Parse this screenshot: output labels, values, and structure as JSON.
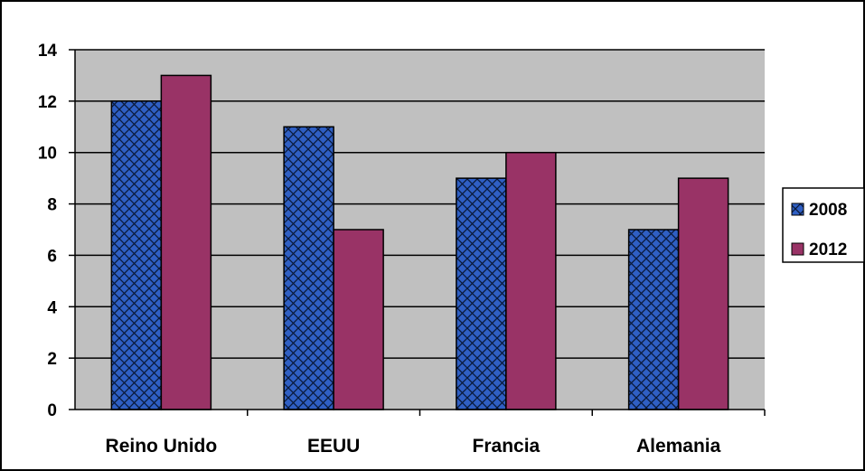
{
  "chart_data": {
    "type": "bar",
    "categories": [
      "Reino Unido",
      "EEUU",
      "Francia",
      "Alemania"
    ],
    "series": [
      {
        "name": "2008",
        "values": [
          12,
          11,
          9,
          7
        ],
        "color": "#2f5fc4",
        "pattern": "crosshatch"
      },
      {
        "name": "2012",
        "values": [
          13,
          7,
          10,
          9
        ],
        "color": "#993366",
        "pattern": "solid"
      }
    ],
    "ylim": [
      0,
      14
    ],
    "yticks": [
      "0",
      "2",
      "4",
      "6",
      "8",
      "10",
      "12",
      "14"
    ],
    "grid": true,
    "legend_position": "right",
    "plot_background": "#c0c0c0"
  }
}
